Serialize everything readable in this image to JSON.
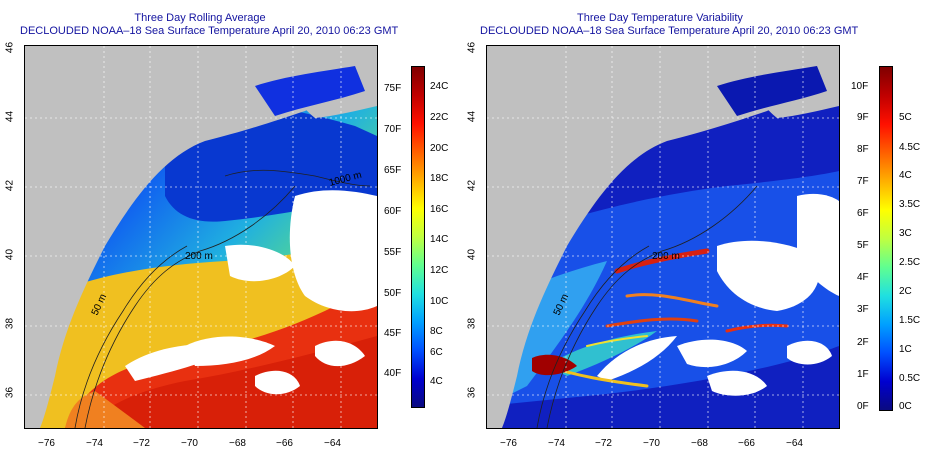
{
  "left": {
    "title1": "Three Day Rolling Average",
    "title2": "DECLOUDED NOAA–18 Sea Surface Temperature April 20, 2010 06:23 GMT",
    "contours": [
      "200 m",
      "50 m",
      "1000 m"
    ],
    "colorbar": {
      "gradient": [
        "#0a0a80",
        "#0000d0",
        "#0050ff",
        "#00a0ff",
        "#20e0e0",
        "#60ff90",
        "#c0ff40",
        "#ffff00",
        "#ffb000",
        "#ff6000",
        "#ff1000",
        "#c00000",
        "#800000"
      ],
      "c_labels": [
        "24C",
        "22C",
        "20C",
        "18C",
        "16C",
        "14C",
        "12C",
        "10C",
        "8C",
        "6C",
        "4C"
      ],
      "f_labels": [
        "75F",
        "70F",
        "65F",
        "60F",
        "55F",
        "50F",
        "45F",
        "40F"
      ]
    }
  },
  "right": {
    "title1": "Three Day Temperature Variability",
    "title2": "DECLOUDED NOAA–18 Sea Surface Temperature April 20, 2010 06:23 GMT",
    "contours": [
      "200 m",
      "50 m"
    ],
    "colorbar": {
      "gradient": [
        "#0a0a80",
        "#0000d0",
        "#0050ff",
        "#00a0ff",
        "#20e0e0",
        "#60ff90",
        "#c0ff40",
        "#ffff00",
        "#ffb000",
        "#ff6000",
        "#ff1000",
        "#c00000",
        "#800000"
      ],
      "f_labels": [
        "10F",
        "9F",
        "8F",
        "7F",
        "6F",
        "5F",
        "4F",
        "3F",
        "2F",
        "1F",
        "0F"
      ],
      "c_labels": [
        "5C",
        "4.5C",
        "4C",
        "3.5C",
        "3C",
        "2.5C",
        "2C",
        "1.5C",
        "1C",
        "0.5C",
        "0C"
      ]
    }
  },
  "axes": {
    "lon_labels": [
      "−76",
      "−74",
      "−72",
      "−70",
      "−68",
      "−66",
      "−64"
    ],
    "lat_labels": [
      "46",
      "44",
      "42",
      "40",
      "38",
      "36"
    ]
  },
  "colors": {
    "title": "#1414a0",
    "land": "#c0c0c0",
    "cloud": "#ffffff"
  }
}
